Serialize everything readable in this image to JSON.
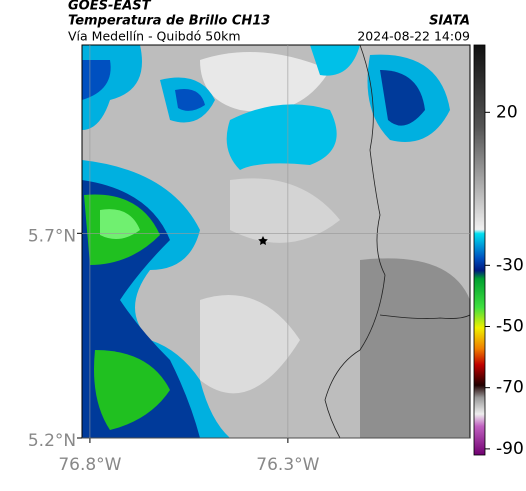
{
  "header": {
    "title": "GOES-EAST",
    "subtitle": "Temperatura de Brillo CH13",
    "source": "SIATA",
    "region": "Vía Medellín - Quibdó 50km",
    "datetime": "2024-08-22 14:09"
  },
  "map": {
    "xlim": [
      -76.82,
      -75.84
    ],
    "ylim": [
      5.2,
      6.16
    ],
    "xticks": [
      {
        "value": -76.8,
        "label": "76.8°W"
      },
      {
        "value": -76.3,
        "label": "76.3°W"
      }
    ],
    "yticks": [
      {
        "value": 5.7,
        "label": "5.7°N"
      },
      {
        "value": 5.2,
        "label": "5.2°N"
      }
    ]
  },
  "colorbar": {
    "lim": [
      -92,
      42
    ],
    "ticks": [
      20,
      -30,
      -50,
      -70,
      -90
    ]
  }
}
